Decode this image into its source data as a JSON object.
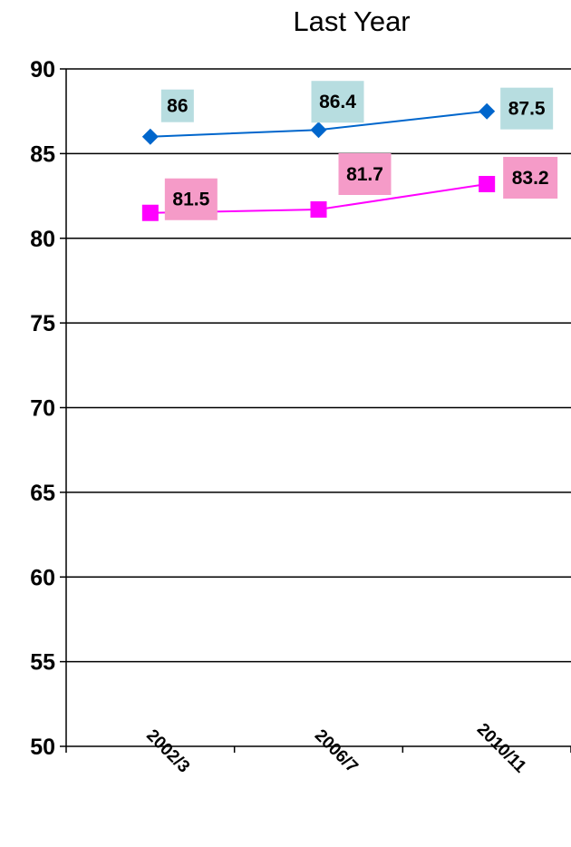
{
  "chart_data": {
    "type": "line",
    "title": "Last Year",
    "categories": [
      "2002/3",
      "2006/7",
      "2010/11"
    ],
    "ylim": [
      50,
      90
    ],
    "yticks": [
      50,
      55,
      60,
      65,
      70,
      75,
      80,
      85,
      90
    ],
    "grid": true,
    "series": [
      {
        "values": [
          86,
          86.4,
          87.5
        ],
        "labels": [
          "86",
          "86.4",
          "87.5"
        ],
        "color": "#0066cc",
        "marker": "diamond",
        "label_bg": "#b7dde0"
      },
      {
        "values": [
          81.5,
          81.7,
          83.2
        ],
        "labels": [
          "81.5",
          "81.7",
          "83.2"
        ],
        "color": "#ff00ff",
        "marker": "square",
        "label_bg": "#f59bc8"
      }
    ]
  }
}
